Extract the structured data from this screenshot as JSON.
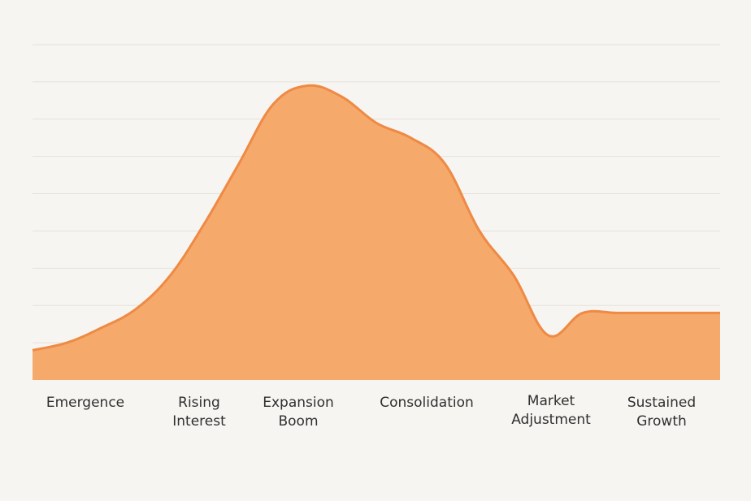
{
  "chart_data": {
    "type": "area",
    "title": "",
    "xlabel": "",
    "ylabel": "",
    "grid": true,
    "categories": [
      [
        "Emergence"
      ],
      [
        "Rising",
        "Interest"
      ],
      [
        "Expansion",
        "Boom"
      ],
      [
        "Consolidation"
      ],
      [
        "Market",
        "Adjustment"
      ],
      [
        "Sustained",
        "Growth"
      ]
    ],
    "x": [
      0,
      1,
      2,
      3,
      4,
      5,
      6,
      7,
      8,
      9,
      10,
      11,
      12,
      13,
      14,
      15,
      16,
      17,
      18,
      19,
      20
    ],
    "values": [
      8,
      10,
      14,
      19,
      28,
      42,
      58,
      74,
      79,
      76,
      69,
      65,
      58,
      40,
      28,
      12,
      18,
      18,
      18,
      18,
      18
    ],
    "ylim": [
      0,
      90
    ],
    "colors": {
      "fill": "#f5a96b",
      "line": "#ee8a44",
      "grid": "#e6e1da",
      "background": "#f7f5f2"
    }
  }
}
